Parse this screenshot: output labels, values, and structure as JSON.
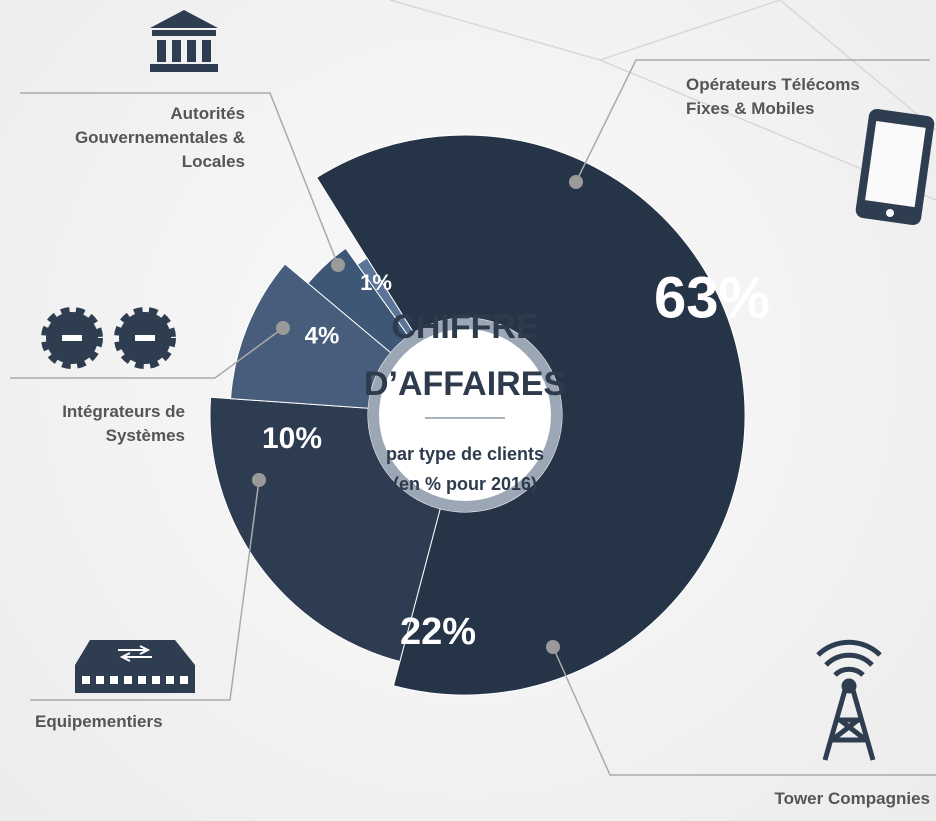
{
  "chart_data": {
    "type": "donut",
    "title": [
      "CHIFFRE",
      "D’AFFAIRES"
    ],
    "subtitle": [
      "par type de clients",
      "(en % pour 2016)"
    ],
    "categories": [
      "Opérateurs Télécoms Fixes & Mobiles",
      "Tower Compagnies",
      "Equipementiers",
      "Intégrateurs de Systèmes",
      "Autorités Gouvernementales & Locales"
    ],
    "values": [
      63,
      22,
      10,
      4,
      1
    ],
    "value_labels": [
      "63%",
      "22%",
      "10%",
      "4%",
      "1%"
    ],
    "colors": [
      "#263447",
      "#2d3c51",
      "#475d7b",
      "#3e5777",
      "#5a7597"
    ]
  }
}
